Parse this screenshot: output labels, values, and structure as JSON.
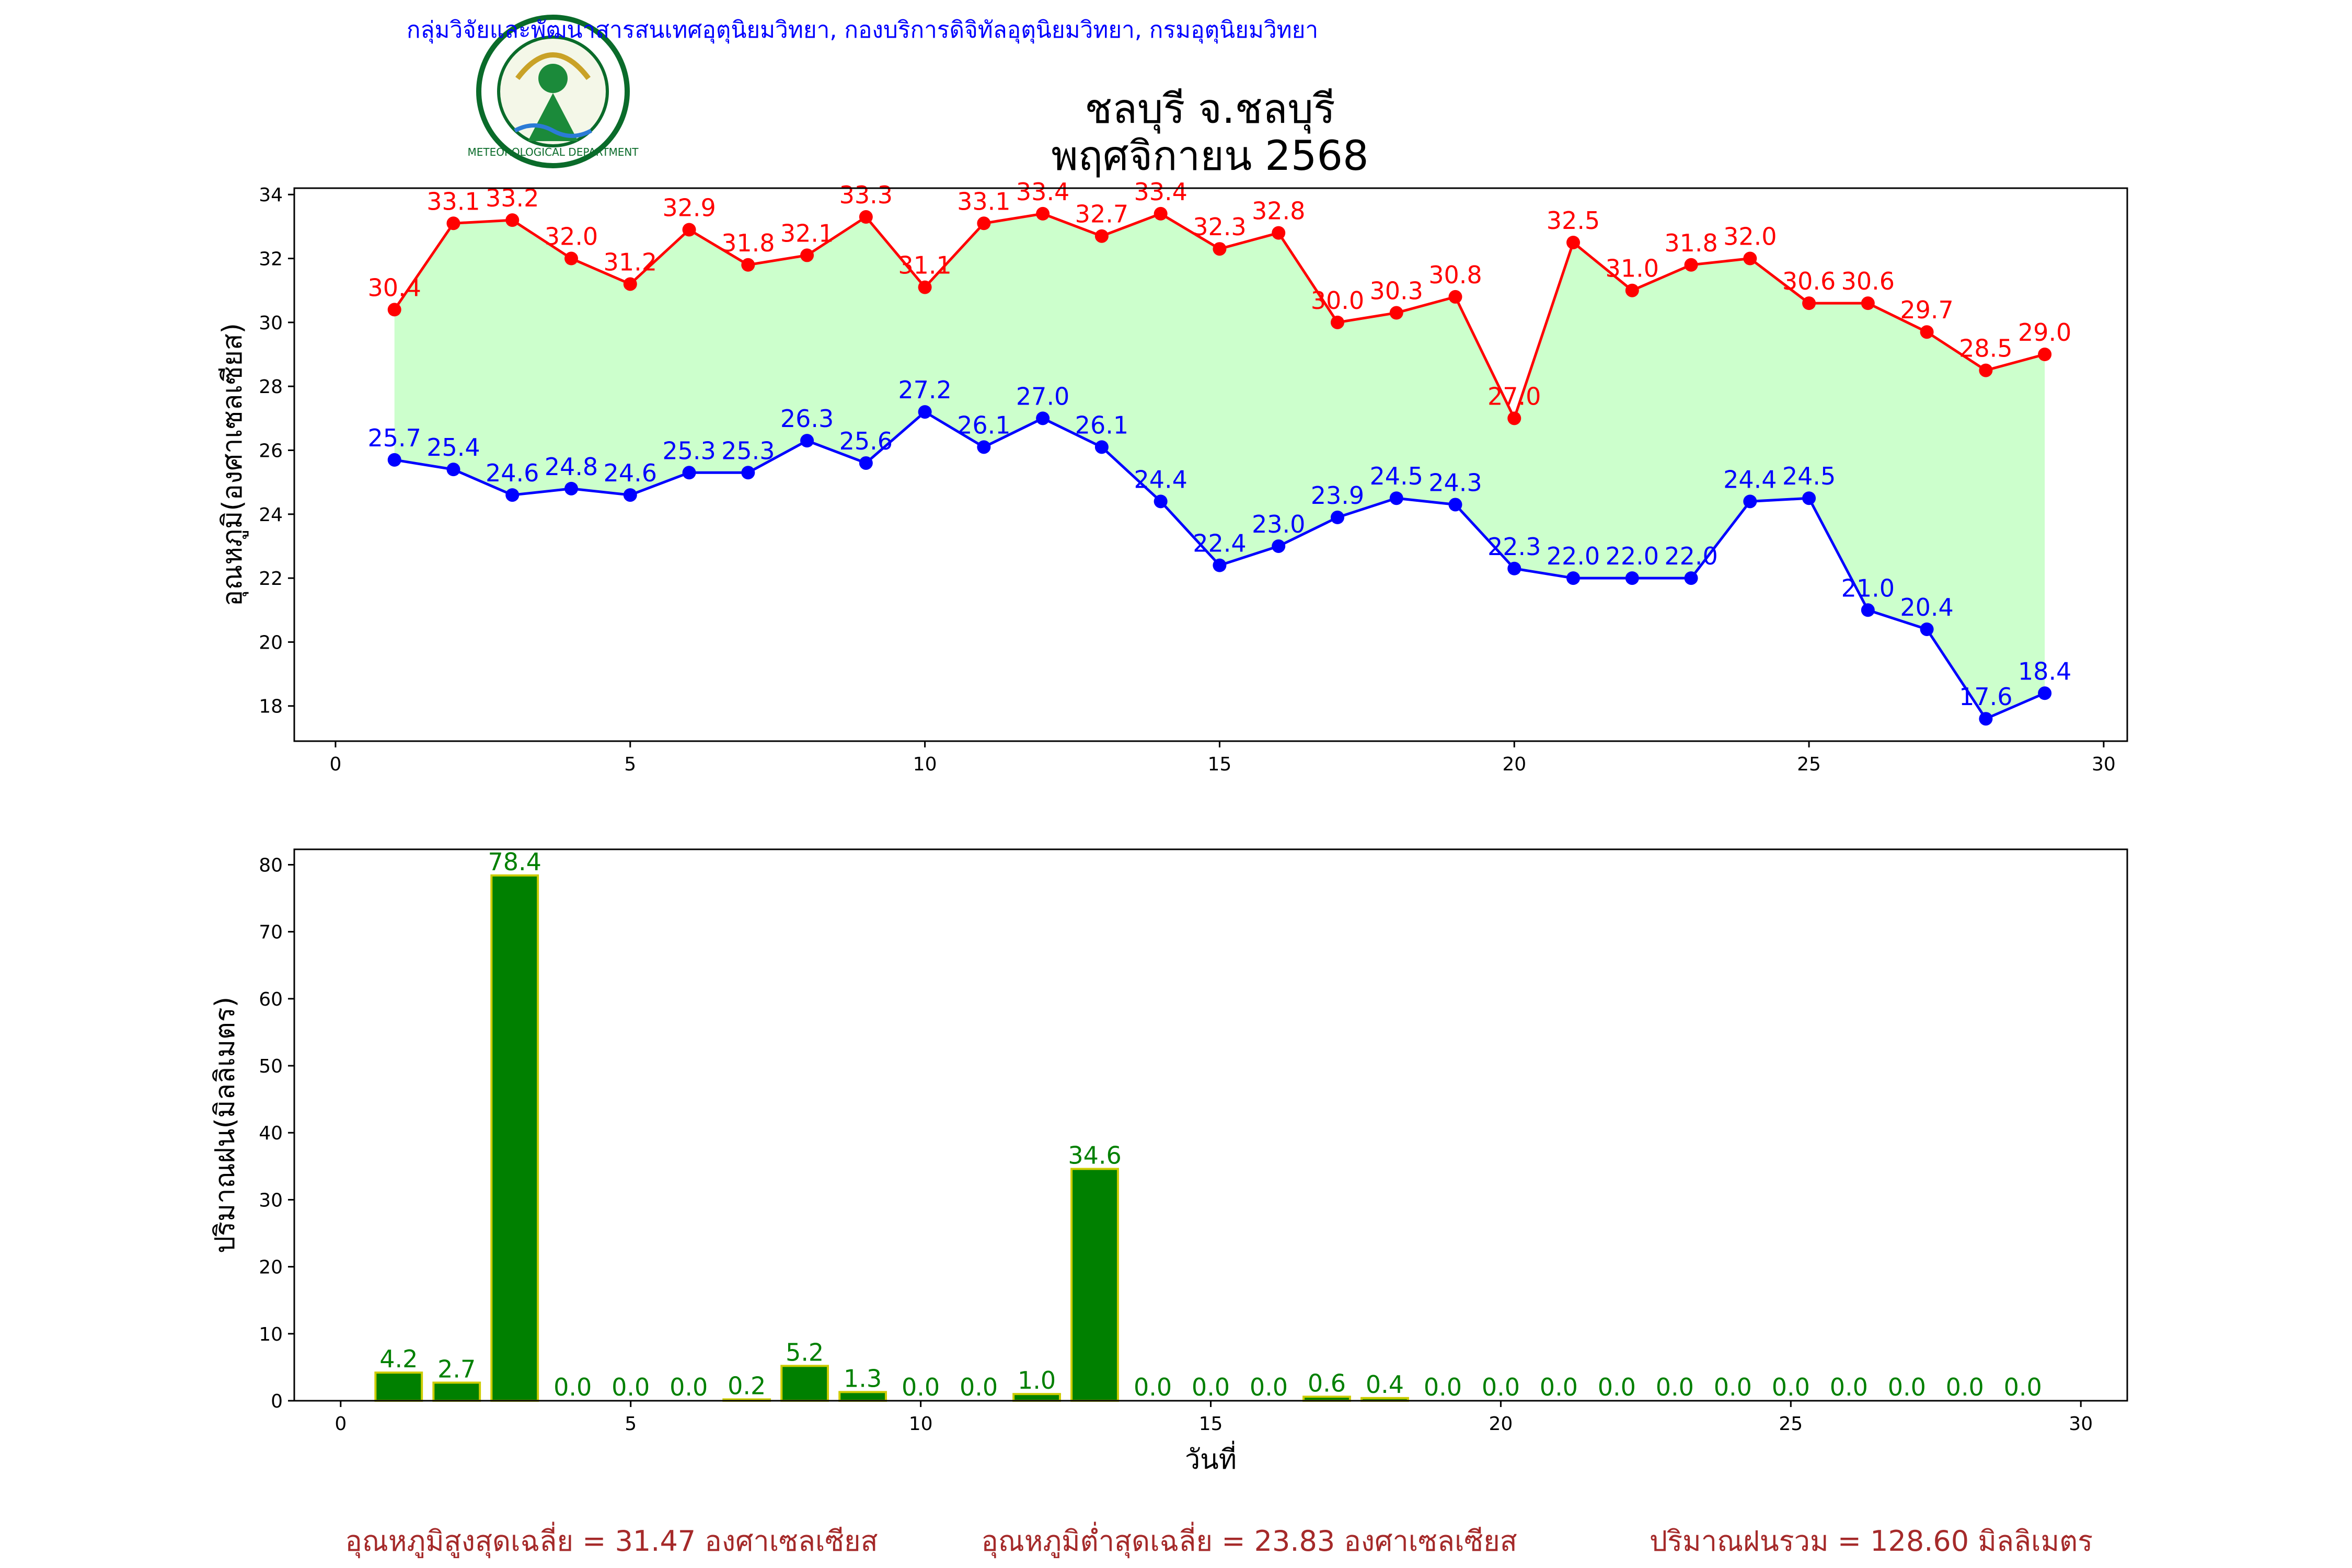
{
  "header": {
    "org_text": "กลุ่มวิจัยและพัฒนาสารสนเทศอุตุนิยมวิทยา, กองบริการดิจิทัลอุตุนิยมวิทยา, กรมอุตุนิยมวิทยา",
    "logo_text": "กรมอุตุนิยมวิทยา METEOROLOGICAL DEPARTMENT"
  },
  "title": {
    "line1": "ชลบุรี จ.ชลบุรี",
    "line2": "พฤศจิกายน 2568"
  },
  "footer": {
    "avg_max": "อุณหภูมิสูงสุดเฉลี่ย = 31.47 องศาเซลเซียส",
    "avg_min": "อุณหภูมิต่ำสุดเฉลี่ย = 23.83 องศาเซลเซียส",
    "total_rain": "ปริมาณฝนรวม = 128.60 มิลลิเมตร"
  },
  "colors": {
    "max_line": "#ff0000",
    "min_line": "#0000ff",
    "fill_between": "#ccffcc",
    "bar_fill": "#008000",
    "bar_edge": "#cccc00"
  },
  "chart_data": [
    {
      "type": "line",
      "ylabel": "อุณหภูมิ(องศาเซลเซียส)",
      "xlabel": "",
      "xlim": [
        -0.7,
        30.4
      ],
      "ylim": [
        16.9,
        34.2
      ],
      "xticks": [
        0,
        5,
        10,
        15,
        20,
        25,
        30
      ],
      "yticks": [
        18,
        20,
        22,
        24,
        26,
        28,
        30,
        32,
        34
      ],
      "fill_between_series": true,
      "x": [
        1,
        2,
        3,
        4,
        5,
        6,
        7,
        8,
        9,
        10,
        11,
        12,
        13,
        14,
        15,
        16,
        17,
        18,
        19,
        20,
        21,
        22,
        23,
        24,
        25,
        26,
        27,
        28,
        29
      ],
      "series": [
        {
          "key": "max",
          "values": [
            30.4,
            33.1,
            33.2,
            32.0,
            31.2,
            32.9,
            31.8,
            32.1,
            33.3,
            31.1,
            33.1,
            33.4,
            32.7,
            33.4,
            32.3,
            32.8,
            30.0,
            30.3,
            30.8,
            27.0,
            32.5,
            31.0,
            31.8,
            32.0,
            30.6,
            30.6,
            29.7,
            28.5,
            29.0
          ],
          "labels": [
            "30.4",
            "33.1",
            "33.2",
            "32.0",
            "31.2",
            "32.9",
            "31.8",
            "32.1",
            "33.3",
            "31.1",
            "33.1",
            "33.4",
            "32.7",
            "33.4",
            "32.3",
            "32.8",
            "30.0",
            "30.3",
            "30.8",
            "27.0",
            "32.5",
            "31.0",
            "31.8",
            "32.0",
            "30.6",
            "30.6",
            "29.7",
            "28.5",
            "29.0"
          ]
        },
        {
          "key": "min",
          "values": [
            25.7,
            25.4,
            24.6,
            24.8,
            24.6,
            25.3,
            25.3,
            26.3,
            25.6,
            27.2,
            26.1,
            27.0,
            26.1,
            24.4,
            22.4,
            23.0,
            23.9,
            24.5,
            24.3,
            22.3,
            22.0,
            22.0,
            22.0,
            24.4,
            24.5,
            21.0,
            20.4,
            17.6,
            18.4
          ],
          "labels": [
            "25.7",
            "25.4",
            "24.6",
            "24.8",
            "24.6",
            "25.3",
            "25.3",
            "26.3",
            "25.6",
            "27.2",
            "26.1",
            "27.0",
            "26.1",
            "24.4",
            "22.4",
            "23.0",
            "23.9",
            "24.5",
            "24.3",
            "22.3",
            "22.0",
            "22.0",
            "22.0",
            "24.4",
            "24.5",
            "21.0",
            "20.4",
            "17.6",
            "18.4"
          ]
        }
      ]
    },
    {
      "type": "bar",
      "ylabel": "ปริมาณฝน(มิลลิเมตร)",
      "xlabel": "วันที่",
      "xlim": [
        -0.8,
        30.8
      ],
      "ylim": [
        0,
        82.3
      ],
      "xticks": [
        0,
        5,
        10,
        15,
        20,
        25,
        30
      ],
      "yticks": [
        0,
        10,
        20,
        30,
        40,
        50,
        60,
        70,
        80
      ],
      "x": [
        1,
        2,
        3,
        4,
        5,
        6,
        7,
        8,
        9,
        10,
        11,
        12,
        13,
        14,
        15,
        16,
        17,
        18,
        19,
        20,
        21,
        22,
        23,
        24,
        25,
        26,
        27,
        28,
        29
      ],
      "values": [
        4.2,
        2.7,
        78.4,
        0.0,
        0.0,
        0.0,
        0.2,
        5.2,
        1.3,
        0.0,
        0.0,
        1.0,
        34.6,
        0.0,
        0.0,
        0.0,
        0.6,
        0.4,
        0.0,
        0.0,
        0.0,
        0.0,
        0.0,
        0.0,
        0.0,
        0.0,
        0.0,
        0.0,
        0.0
      ],
      "labels": [
        "4.2",
        "2.7",
        "78.4",
        "0.0",
        "0.0",
        "0.0",
        "0.2",
        "5.2",
        "1.3",
        "0.0",
        "0.0",
        "1.0",
        "34.6",
        "0.0",
        "0.0",
        "0.0",
        "0.6",
        "0.4",
        "0.0",
        "0.0",
        "0.0",
        "0.0",
        "0.0",
        "0.0",
        "0.0",
        "0.0",
        "0.0",
        "0.0",
        "0.0"
      ]
    }
  ]
}
